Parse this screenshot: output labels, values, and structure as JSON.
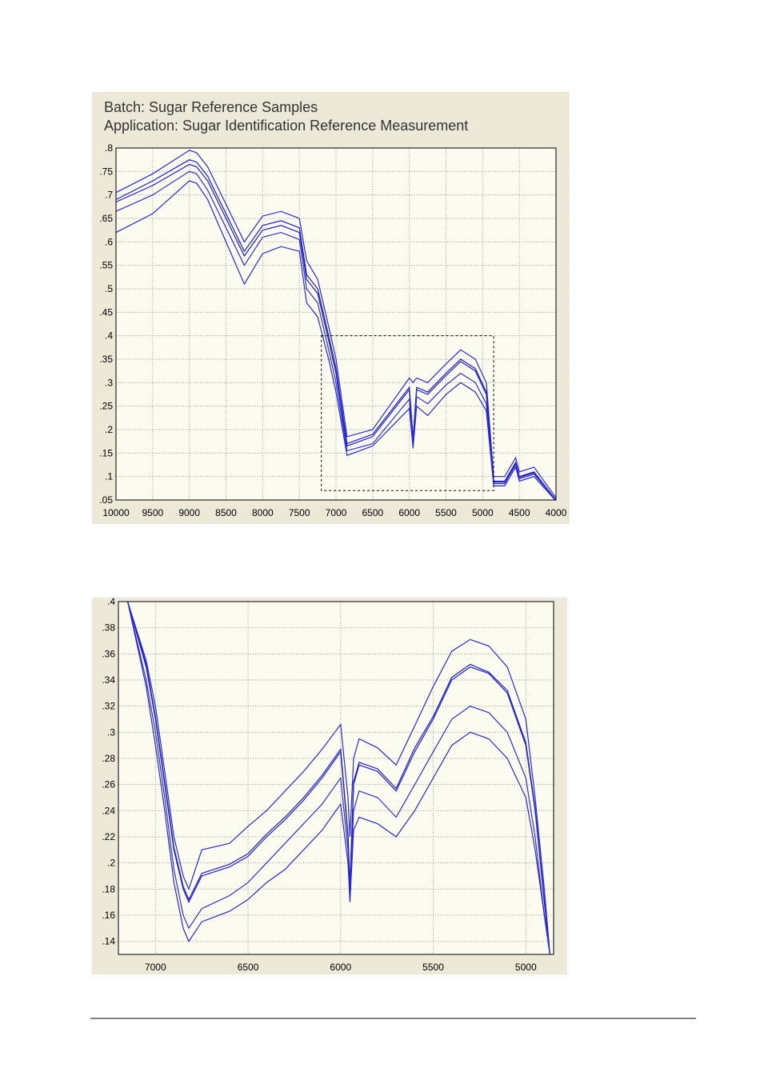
{
  "chart_data": [
    {
      "type": "line",
      "title": "Batch: Sugar Reference Samples",
      "subtitle": "Application: Sugar Identification Reference Measurement",
      "x": [
        10000,
        9500,
        9000,
        8900,
        8750,
        8500,
        8250,
        8000,
        7750,
        7500,
        7400,
        7250,
        7100,
        7000,
        6850,
        6500,
        6000,
        5950,
        5900,
        5750,
        5500,
        5300,
        5100,
        4950,
        4850,
        4700,
        4550,
        4500,
        4300,
        4000
      ],
      "series": [
        {
          "color": "#2a2ad8",
          "values": [
            0.705,
            0.745,
            0.795,
            0.79,
            0.76,
            0.68,
            0.6,
            0.655,
            0.665,
            0.65,
            0.56,
            0.52,
            0.42,
            0.35,
            0.185,
            0.2,
            0.31,
            0.3,
            0.31,
            0.3,
            0.34,
            0.37,
            0.35,
            0.3,
            0.1,
            0.1,
            0.14,
            0.11,
            0.12,
            0.055
          ]
        },
        {
          "color": "#1c1cc8",
          "values": [
            0.69,
            0.73,
            0.775,
            0.77,
            0.74,
            0.66,
            0.58,
            0.635,
            0.645,
            0.63,
            0.53,
            0.5,
            0.4,
            0.33,
            0.17,
            0.19,
            0.29,
            0.18,
            0.29,
            0.28,
            0.32,
            0.35,
            0.33,
            0.28,
            0.09,
            0.09,
            0.13,
            0.1,
            0.11,
            0.05
          ]
        },
        {
          "color": "#2020c0",
          "values": [
            0.685,
            0.72,
            0.765,
            0.76,
            0.73,
            0.65,
            0.57,
            0.625,
            0.635,
            0.62,
            0.52,
            0.49,
            0.39,
            0.32,
            0.165,
            0.185,
            0.285,
            0.18,
            0.285,
            0.275,
            0.315,
            0.345,
            0.325,
            0.275,
            0.088,
            0.088,
            0.128,
            0.098,
            0.108,
            0.05
          ]
        },
        {
          "color": "#3030d0",
          "values": [
            0.665,
            0.7,
            0.75,
            0.745,
            0.71,
            0.63,
            0.55,
            0.61,
            0.62,
            0.605,
            0.5,
            0.47,
            0.37,
            0.3,
            0.155,
            0.17,
            0.265,
            0.17,
            0.27,
            0.255,
            0.295,
            0.32,
            0.3,
            0.255,
            0.085,
            0.085,
            0.125,
            0.095,
            0.105,
            0.05
          ]
        },
        {
          "color": "#2828d0",
          "values": [
            0.62,
            0.66,
            0.73,
            0.725,
            0.69,
            0.6,
            0.51,
            0.575,
            0.59,
            0.58,
            0.47,
            0.44,
            0.35,
            0.28,
            0.145,
            0.165,
            0.245,
            0.16,
            0.25,
            0.23,
            0.275,
            0.3,
            0.28,
            0.24,
            0.08,
            0.08,
            0.12,
            0.09,
            0.1,
            0.048
          ]
        }
      ],
      "xlim": [
        10000,
        4000
      ],
      "ylim": [
        0.05,
        0.8
      ],
      "xticks": [
        10000,
        9500,
        9000,
        8500,
        8000,
        7500,
        7000,
        6500,
        6000,
        5500,
        5000,
        4500,
        4000
      ],
      "yticks": [
        {
          "value": 0.05,
          "label": ".05"
        },
        {
          "value": 0.1,
          "label": ".1"
        },
        {
          "value": 0.15,
          "label": ".15"
        },
        {
          "value": 0.2,
          "label": ".2"
        },
        {
          "value": 0.25,
          "label": ".25"
        },
        {
          "value": 0.3,
          "label": ".3"
        },
        {
          "value": 0.35,
          "label": ".35"
        },
        {
          "value": 0.4,
          "label": ".4"
        },
        {
          "value": 0.45,
          "label": ".45"
        },
        {
          "value": 0.5,
          "label": ".5"
        },
        {
          "value": 0.55,
          "label": ".55"
        },
        {
          "value": 0.6,
          "label": ".6"
        },
        {
          "value": 0.65,
          "label": ".65"
        },
        {
          "value": 0.7,
          "label": ".7"
        },
        {
          "value": 0.75,
          "label": ".75"
        },
        {
          "value": 0.8,
          "label": ".8"
        }
      ],
      "grid": true,
      "zoom_box": {
        "xlim": [
          7200,
          4850
        ],
        "ylim": [
          0.07,
          0.4
        ]
      }
    },
    {
      "type": "line",
      "x": [
        7150,
        7050,
        7000,
        6950,
        6900,
        6850,
        6820,
        6750,
        6600,
        6500,
        6400,
        6300,
        6200,
        6100,
        6000,
        5960,
        5950,
        5930,
        5900,
        5800,
        5700,
        5600,
        5500,
        5400,
        5300,
        5200,
        5100,
        5000,
        4950,
        4900,
        4870
      ],
      "series": [
        {
          "color": "#2a2ad8",
          "values": [
            0.4,
            0.355,
            0.32,
            0.27,
            0.22,
            0.19,
            0.18,
            0.21,
            0.215,
            0.228,
            0.24,
            0.255,
            0.27,
            0.287,
            0.306,
            0.25,
            0.22,
            0.28,
            0.295,
            0.288,
            0.275,
            0.305,
            0.335,
            0.362,
            0.371,
            0.366,
            0.35,
            0.31,
            0.25,
            0.18,
            0.13
          ]
        },
        {
          "color": "#1c1cc8",
          "values": [
            0.4,
            0.352,
            0.312,
            0.262,
            0.212,
            0.182,
            0.172,
            0.192,
            0.199,
            0.207,
            0.222,
            0.235,
            0.25,
            0.267,
            0.287,
            0.222,
            0.182,
            0.262,
            0.277,
            0.272,
            0.257,
            0.288,
            0.312,
            0.342,
            0.352,
            0.346,
            0.332,
            0.292,
            0.242,
            0.172,
            0.13
          ]
        },
        {
          "color": "#2020c0",
          "values": [
            0.4,
            0.35,
            0.31,
            0.26,
            0.21,
            0.18,
            0.17,
            0.19,
            0.197,
            0.205,
            0.22,
            0.233,
            0.248,
            0.265,
            0.285,
            0.22,
            0.18,
            0.26,
            0.275,
            0.27,
            0.255,
            0.285,
            0.31,
            0.34,
            0.35,
            0.345,
            0.33,
            0.29,
            0.24,
            0.17,
            0.13
          ]
        },
        {
          "color": "#3030d0",
          "values": [
            0.4,
            0.34,
            0.3,
            0.25,
            0.195,
            0.16,
            0.15,
            0.165,
            0.175,
            0.185,
            0.2,
            0.215,
            0.23,
            0.245,
            0.265,
            0.21,
            0.175,
            0.24,
            0.255,
            0.25,
            0.235,
            0.26,
            0.285,
            0.31,
            0.32,
            0.315,
            0.3,
            0.265,
            0.22,
            0.16,
            0.13
          ]
        },
        {
          "color": "#2828d0",
          "values": [
            0.4,
            0.335,
            0.29,
            0.24,
            0.185,
            0.15,
            0.14,
            0.155,
            0.163,
            0.172,
            0.185,
            0.195,
            0.21,
            0.225,
            0.245,
            0.2,
            0.17,
            0.225,
            0.235,
            0.23,
            0.22,
            0.24,
            0.265,
            0.29,
            0.3,
            0.295,
            0.28,
            0.25,
            0.21,
            0.16,
            0.13
          ]
        }
      ],
      "xlim": [
        7200,
        4850
      ],
      "ylim": [
        0.13,
        0.4
      ],
      "xticks": [
        7000,
        6500,
        6000,
        5500,
        5000
      ],
      "yticks": [
        {
          "value": 0.14,
          "label": ".14"
        },
        {
          "value": 0.16,
          "label": ".16"
        },
        {
          "value": 0.18,
          "label": ".18"
        },
        {
          "value": 0.2,
          "label": ".2"
        },
        {
          "value": 0.22,
          "label": ".22"
        },
        {
          "value": 0.24,
          "label": ".24"
        },
        {
          "value": 0.26,
          "label": ".26"
        },
        {
          "value": 0.28,
          "label": ".28"
        },
        {
          "value": 0.3,
          "label": ".3"
        },
        {
          "value": 0.32,
          "label": ".32"
        },
        {
          "value": 0.34,
          "label": ".34"
        },
        {
          "value": 0.36,
          "label": ".36"
        },
        {
          "value": 0.38,
          "label": ".38"
        },
        {
          "value": 0.4,
          "label": ".4"
        }
      ],
      "grid": true
    }
  ]
}
